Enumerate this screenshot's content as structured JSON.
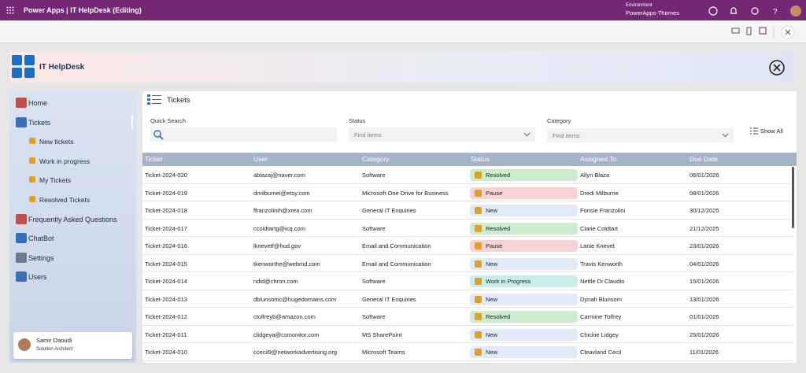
{
  "top_bar": {
    "app_title": "Power Apps | IT HelpDesk (Editing)",
    "environment_label": "Environment",
    "environment_name": "PowerApps-Themes"
  },
  "app_header": {
    "title": "IT HelpDesk"
  },
  "nav": {
    "items": [
      {
        "label": "Home"
      },
      {
        "label": "Tickets",
        "children": [
          "New tickets",
          "Work in progress",
          "My Tickets",
          "Resolved Tickets"
        ]
      },
      {
        "label": "Frequently Asked Questions"
      },
      {
        "label": "ChatBot"
      },
      {
        "label": "Settings"
      },
      {
        "label": "Users"
      }
    ]
  },
  "user": {
    "name": "Samir Daoudi",
    "role": "Solution Architect"
  },
  "tickets": {
    "title": "Tickets",
    "filters": {
      "quick_search_label": "Quick Search",
      "status_label": "Status",
      "status_placeholder": "Find items",
      "category_label": "Category",
      "category_placeholder": "Find items",
      "show_all": "Show All"
    },
    "table": {
      "columns": [
        "Ticket",
        "User",
        "Category",
        "Status",
        "Assigned To",
        "Due Date"
      ],
      "rows": [
        [
          "Ticket-2024-020",
          "ablazaj@naver.com",
          "Software",
          "Resolved",
          "Allyn Blaza",
          "06/01/2026"
        ],
        [
          "Ticket-2024-019",
          "dmilburnei@etsy.com",
          "Microsoft One Drive for Business",
          "Pause",
          "Dredi Milburne",
          "08/01/2026"
        ],
        [
          "Ticket-2024-018",
          "ffranzolinih@xrea.com",
          "General IT Enquiries",
          "New",
          "Fonsie Franzolini",
          "30/12/2025"
        ],
        [
          "Ticket-2024-017",
          "ccoldtartg@icq.com",
          "Software",
          "Resolved",
          "Clarie Coldtart",
          "21/12/2025"
        ],
        [
          "Ticket-2024-016",
          "lknevetf@hud.gov",
          "Email and Communication",
          "Pause",
          "Lanie Knevet",
          "23/01/2026"
        ],
        [
          "Ticket-2024-015",
          "tkenworthe@webmd.com",
          "Email and Communication",
          "New",
          "Travis Kenworth",
          "04/01/2026"
        ],
        [
          "Ticket-2024-014",
          "ndid@chron.com",
          "Software",
          "Work in Progress",
          "Nettle Di Claudio",
          "15/01/2026"
        ],
        [
          "Ticket-2024-013",
          "dblunsomc@hugedomains.com",
          "General IT Enquiries",
          "New",
          "Dynah Blunsom",
          "13/01/2026"
        ],
        [
          "Ticket-2024-012",
          "ctolfreyb@amazon.com",
          "Software",
          "Resolved",
          "Carmine Tolfrey",
          "01/01/2026"
        ],
        [
          "Ticket-2024-011",
          "clidgeya@csmonitor.com",
          "MS SharePoint",
          "New",
          "Chickie Lidgey",
          "25/01/2026"
        ],
        [
          "Ticket-2024-010",
          "ccecil9@networkadvertising.org",
          "Microsoft Teams",
          "New",
          "Cleavland Cecil",
          "11/01/2026"
        ]
      ],
      "status_colors": [
        "#cdeccb",
        "#f8d3d3",
        "#e1ebf7",
        "#cdeccb",
        "#f8d3d3",
        "#e1ebf7",
        "#c9eeec",
        "#e1ebf7",
        "#cdeccb",
        "#e1ebf7",
        "#e1ebf7"
      ]
    }
  }
}
